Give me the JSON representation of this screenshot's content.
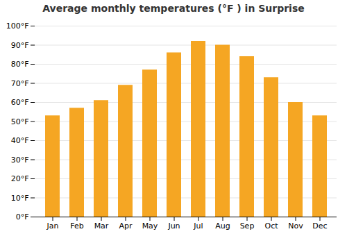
{
  "chart_data": {
    "type": "bar",
    "title": "Average monthly temperatures (°F ) in Surprise",
    "categories": [
      "Jan",
      "Feb",
      "Mar",
      "Apr",
      "May",
      "Jun",
      "Jul",
      "Aug",
      "Sep",
      "Oct",
      "Nov",
      "Dec"
    ],
    "values": [
      53,
      57,
      61,
      69,
      77,
      86,
      92,
      90,
      84,
      73,
      60,
      53
    ],
    "color": "#F5A623",
    "ylim": [
      0,
      100
    ],
    "yticks": [
      {
        "value": 0,
        "label": "0°F"
      },
      {
        "value": 10,
        "label": "10°F"
      },
      {
        "value": 20,
        "label": "20°F"
      },
      {
        "value": 30,
        "label": "30°F"
      },
      {
        "value": 40,
        "label": "40°F"
      },
      {
        "value": 50,
        "label": "50°F"
      },
      {
        "value": 60,
        "label": "60°F"
      },
      {
        "value": 70,
        "label": "70°F"
      },
      {
        "value": 80,
        "label": "80°F"
      },
      {
        "value": 90,
        "label": "90°F"
      },
      {
        "value": 100,
        "label": "100°F"
      }
    ],
    "grid": true
  }
}
